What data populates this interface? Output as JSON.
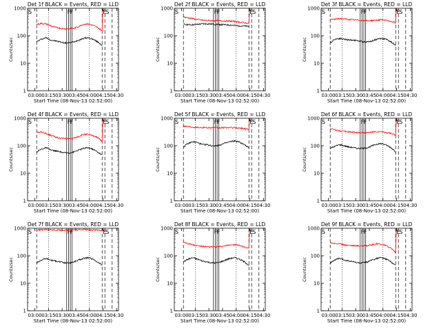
{
  "figure": {
    "xlabel": "Start Time (08-Nov-13 02:52:00)",
    "ylabel": "Counts/sec",
    "x_ticks": [
      "03:00",
      "03:15",
      "03:30",
      "03:45",
      "04:00",
      "04:15",
      "04:30"
    ],
    "y_ticks": [
      "1",
      "10",
      "100",
      "1000"
    ],
    "marker_labels": [
      "S",
      "F",
      "E"
    ],
    "colors": {
      "events": "#000000",
      "lld": "#ff0000",
      "axes": "#000000",
      "background": "#ffffff"
    }
  },
  "chart_data": [
    {
      "type": "line",
      "title": "Det 1f BLACK = Events, RED = LLD",
      "x_range": [
        "02:52",
        "04:32"
      ],
      "y_range": [
        1,
        1000
      ],
      "y_scale": "log",
      "series": [
        {
          "name": "Events",
          "values": [
            60,
            75,
            85,
            70,
            65,
            60,
            55,
            55,
            60,
            70,
            80,
            85,
            75,
            60,
            45
          ]
        },
        {
          "name": "LLD",
          "values": [
            260,
            280,
            270,
            230,
            200,
            190,
            180,
            180,
            185,
            220,
            260,
            270,
            240,
            200,
            150
          ]
        }
      ]
    },
    {
      "type": "line",
      "title": "Det 2f BLACK = Events, RED = LLD",
      "x_range": [
        "02:52",
        "04:32"
      ],
      "y_range": [
        1,
        1000
      ],
      "y_scale": "log",
      "series": [
        {
          "name": "Events",
          "values": [
            260,
            255,
            250,
            260,
            270,
            270,
            265,
            260,
            255,
            250,
            245,
            235,
            230,
            225,
            215
          ]
        },
        {
          "name": "LLD",
          "values": [
            480,
            450,
            420,
            390,
            370,
            360,
            355,
            350,
            350,
            345,
            340,
            330,
            315,
            300,
            280
          ]
        }
      ]
    },
    {
      "type": "line",
      "title": "Det 3f BLACK = Events, RED = LLD",
      "x_range": [
        "02:52",
        "04:32"
      ],
      "y_range": [
        1,
        1000
      ],
      "y_scale": "log",
      "series": [
        {
          "name": "Events",
          "values": [
            55,
            75,
            80,
            75,
            70,
            70,
            65,
            60,
            60,
            65,
            75,
            80,
            75,
            60,
            45
          ]
        },
        {
          "name": "LLD",
          "values": [
            380,
            400,
            420,
            410,
            390,
            380,
            370,
            360,
            350,
            360,
            370,
            380,
            360,
            330,
            300
          ]
        }
      ]
    },
    {
      "type": "line",
      "title": "Det 4f BLACK = Events, RED = LLD",
      "x_range": [
        "02:52",
        "04:32"
      ],
      "y_range": [
        1,
        1000
      ],
      "y_scale": "log",
      "series": [
        {
          "name": "Events",
          "values": [
            60,
            75,
            85,
            70,
            65,
            60,
            55,
            55,
            60,
            70,
            80,
            85,
            75,
            60,
            45
          ]
        },
        {
          "name": "LLD",
          "values": [
            300,
            320,
            280,
            240,
            210,
            190,
            180,
            180,
            190,
            220,
            260,
            260,
            230,
            200,
            140
          ]
        }
      ]
    },
    {
      "type": "line",
      "title": "Det 5f BLACK = Events, RED = LLD",
      "x_range": [
        "02:52",
        "04:32"
      ],
      "y_range": [
        1,
        1000
      ],
      "y_scale": "log",
      "series": [
        {
          "name": "Events",
          "values": [
            90,
            120,
            140,
            130,
            110,
            110,
            100,
            100,
            110,
            125,
            140,
            150,
            135,
            110,
            80
          ]
        },
        {
          "name": "LLD",
          "values": [
            520,
            500,
            480,
            470,
            460,
            460,
            455,
            450,
            450,
            455,
            460,
            450,
            440,
            420,
            400
          ]
        }
      ]
    },
    {
      "type": "line",
      "title": "Det 6f BLACK = Events, RED = LLD",
      "x_range": [
        "02:52",
        "04:32"
      ],
      "y_range": [
        1,
        1000
      ],
      "y_scale": "log",
      "series": [
        {
          "name": "Events",
          "values": [
            80,
            95,
            110,
            100,
            90,
            85,
            80,
            80,
            85,
            100,
            115,
            120,
            105,
            85,
            60
          ]
        },
        {
          "name": "LLD",
          "values": [
            420,
            380,
            350,
            330,
            320,
            310,
            300,
            300,
            300,
            310,
            320,
            320,
            300,
            280,
            240
          ]
        }
      ]
    },
    {
      "type": "line",
      "title": "Det 7f BLACK = Events, RED = LLD",
      "x_range": [
        "02:52",
        "04:32"
      ],
      "y_range": [
        1,
        1000
      ],
      "y_scale": "log",
      "series": [
        {
          "name": "Events",
          "values": [
            55,
            70,
            80,
            70,
            65,
            60,
            55,
            55,
            60,
            70,
            80,
            85,
            75,
            60,
            45
          ]
        },
        {
          "name": "LLD",
          "values": [
            850,
            880,
            900,
            880,
            860,
            850,
            850,
            860,
            870,
            880,
            900,
            880,
            860,
            850,
            820
          ]
        }
      ]
    },
    {
      "type": "line",
      "title": "Det 8f BLACK = Events, RED = LLD",
      "x_range": [
        "02:52",
        "04:32"
      ],
      "y_range": [
        1,
        1000
      ],
      "y_scale": "log",
      "series": [
        {
          "name": "Events",
          "values": [
            60,
            75,
            85,
            75,
            65,
            60,
            55,
            55,
            60,
            70,
            80,
            85,
            75,
            60,
            45
          ]
        },
        {
          "name": "LLD",
          "values": [
            320,
            280,
            250,
            230,
            220,
            210,
            210,
            210,
            215,
            230,
            250,
            250,
            235,
            210,
            180
          ]
        }
      ]
    },
    {
      "type": "line",
      "title": "Det 9f BLACK = Events, RED = LLD",
      "x_range": [
        "02:52",
        "04:32"
      ],
      "y_range": [
        1,
        1000
      ],
      "y_scale": "log",
      "series": [
        {
          "name": "Events",
          "values": [
            55,
            70,
            80,
            70,
            65,
            60,
            55,
            55,
            60,
            70,
            80,
            85,
            75,
            60,
            45
          ]
        },
        {
          "name": "LLD",
          "values": [
            300,
            280,
            270,
            250,
            240,
            235,
            230,
            230,
            235,
            250,
            270,
            260,
            230,
            190,
            130
          ]
        }
      ]
    }
  ]
}
